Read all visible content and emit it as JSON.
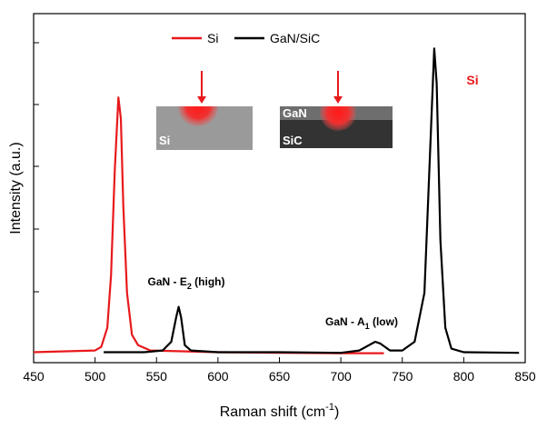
{
  "chart_data": {
    "type": "line",
    "x_label": {
      "text": "Raman shift (cm",
      "sup": "-1",
      "tail": ")"
    },
    "y_label": "Intensity (a.u.)",
    "xlim": [
      450,
      850
    ],
    "xticks": [
      450,
      500,
      550,
      600,
      650,
      700,
      750,
      800,
      850
    ],
    "ylim": [
      0,
      1
    ],
    "legend": "upper center",
    "series": [
      {
        "name": "Si",
        "color": "#e8191c",
        "x": [
          450,
          500,
          505,
          510,
          513,
          516,
          519,
          521,
          523,
          526,
          530,
          535,
          545,
          600,
          650,
          700,
          735
        ],
        "values": [
          0.03,
          0.035,
          0.045,
          0.1,
          0.25,
          0.55,
          0.76,
          0.7,
          0.45,
          0.2,
          0.08,
          0.05,
          0.035,
          0.03,
          0.028,
          0.027,
          0.027
        ]
      },
      {
        "name": "GaN/SiC",
        "color": "#000000",
        "x": [
          507,
          540,
          555,
          562,
          566,
          568,
          570,
          573,
          578,
          600,
          650,
          700,
          715,
          728,
          732,
          740,
          750,
          760,
          768,
          772,
          776,
          778,
          781,
          785,
          790,
          800,
          845
        ],
        "values": [
          0.03,
          0.03,
          0.035,
          0.06,
          0.13,
          0.16,
          0.13,
          0.05,
          0.035,
          0.03,
          0.03,
          0.028,
          0.035,
          0.06,
          0.055,
          0.035,
          0.035,
          0.06,
          0.2,
          0.55,
          0.9,
          0.8,
          0.35,
          0.1,
          0.04,
          0.03,
          0.028
        ]
      }
    ],
    "annotations": [
      {
        "text": "Si",
        "color": "#e8191c"
      },
      {
        "text": "SiC",
        "color": "#000000"
      },
      {
        "text": "GaN - E",
        "sub": "2",
        "tail": " (high)"
      },
      {
        "text": "GaN - A",
        "sub": "1",
        "tail": " (low)"
      }
    ],
    "inset_labels": [
      "Si",
      "GaN",
      "SiC"
    ]
  }
}
